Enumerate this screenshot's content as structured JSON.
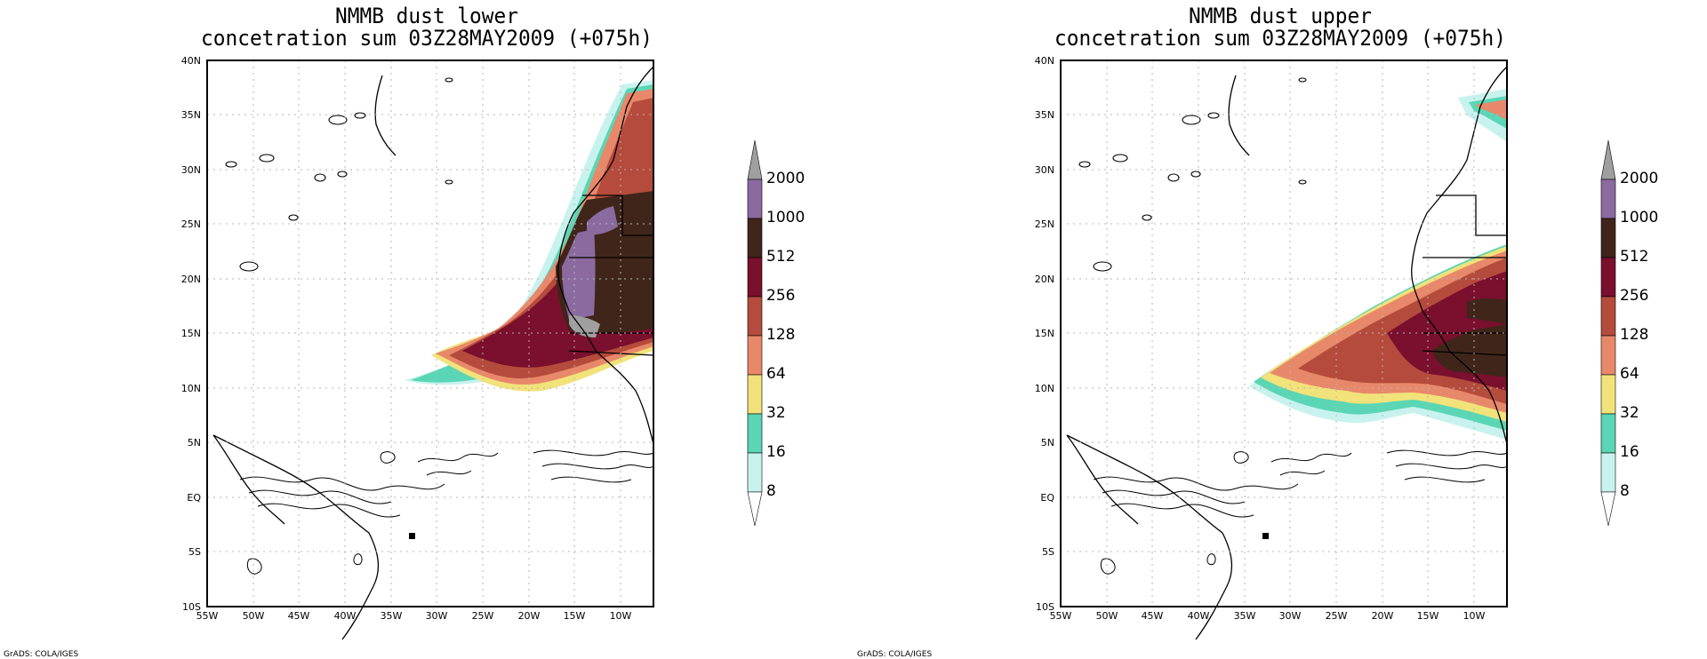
{
  "maps": [
    {
      "title_line1": "NMMB dust lower",
      "title_line2": "concetration sum 03Z28MAY2009 (+075h)",
      "credit": "GrADS: COLA/IGES"
    },
    {
      "title_line1": "NMMB dust upper",
      "title_line2": "concetration sum 03Z28MAY2009 (+075h)",
      "credit": "GrADS: COLA/IGES"
    }
  ],
  "lat_labels": [
    "40N",
    "35N",
    "30N",
    "25N",
    "20N",
    "15N",
    "10N",
    "5N",
    "EQ",
    "5S",
    "10S"
  ],
  "lon_labels": [
    "55W",
    "50W",
    "45W",
    "40W",
    "35W",
    "30W",
    "25W",
    "20W",
    "15W",
    "10W"
  ],
  "colorbar": {
    "labels": [
      "2000",
      "1000",
      "512",
      "256",
      "128",
      "64",
      "32",
      "16",
      "8"
    ],
    "colors": [
      "#9f9f9f",
      "#8b6aa0",
      "#40261a",
      "#7a0f2e",
      "#b54b3c",
      "#e8886a",
      "#f2e27a",
      "#5ad6b4",
      "#c8f2ee",
      "#ffffff"
    ]
  }
}
